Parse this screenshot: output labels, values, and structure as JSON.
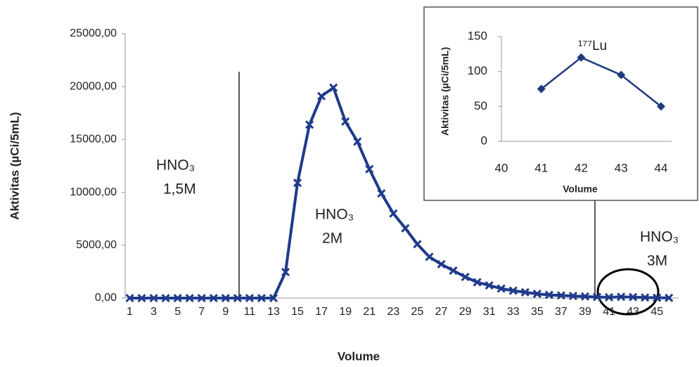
{
  "chart_data": [
    {
      "type": "line",
      "x_label": "Volume",
      "y_label": "Aktivitas (µCi/5mL)",
      "categories": [
        1,
        null,
        3,
        null,
        5,
        null,
        7,
        null,
        9,
        null,
        11,
        null,
        13,
        null,
        15,
        null,
        17,
        null,
        19,
        null,
        21,
        null,
        23,
        null,
        25,
        null,
        27,
        null,
        29,
        null,
        31,
        null,
        33,
        null,
        35,
        null,
        37,
        null,
        39,
        null,
        41,
        null,
        43,
        null,
        45,
        null
      ],
      "series": [
        {
          "color": "#1f3a8a",
          "values": [
            0,
            0,
            0,
            0,
            0,
            0,
            0,
            0,
            0,
            0,
            0,
            0,
            0,
            2460,
            10900,
            16400,
            19100,
            19900,
            16700,
            14800,
            12200,
            9900,
            8000,
            6600,
            5100,
            3900,
            3200,
            2600,
            2000,
            1500,
            1200,
            900,
            700,
            550,
            400,
            300,
            250,
            200,
            150,
            100,
            75,
            120,
            95,
            50,
            30,
            20
          ]
        }
      ],
      "ylim": [
        0,
        25000
      ],
      "yticks": [
        {
          "value": 0,
          "label": "0,00"
        },
        {
          "value": 5000,
          "label": "5000,00"
        },
        {
          "value": 10000,
          "label": "10000,00"
        },
        {
          "value": 15000,
          "label": "15000,00"
        },
        {
          "value": 20000,
          "label": "20000,00"
        },
        {
          "value": 25000,
          "label": "25000,00"
        }
      ],
      "annotations": [
        [
          "HNO₃",
          "1,5M"
        ],
        [
          "HNO₃",
          "2M"
        ],
        [
          "HNO₃",
          "3M"
        ]
      ]
    },
    {
      "type": "line",
      "x_label": "Volume",
      "y_label": "Aktivitas (µCi/5mL)",
      "categories": [
        40,
        41,
        42,
        43,
        44
      ],
      "series": [
        {
          "color": "#1f3a7a",
          "values": [
            null,
            75,
            120,
            95,
            50
          ]
        }
      ],
      "ylim": [
        0,
        150
      ],
      "yticks": [
        0,
        50,
        100,
        150
      ],
      "annotations": [
        [
          "¹⁷⁷Lu"
        ]
      ]
    }
  ]
}
